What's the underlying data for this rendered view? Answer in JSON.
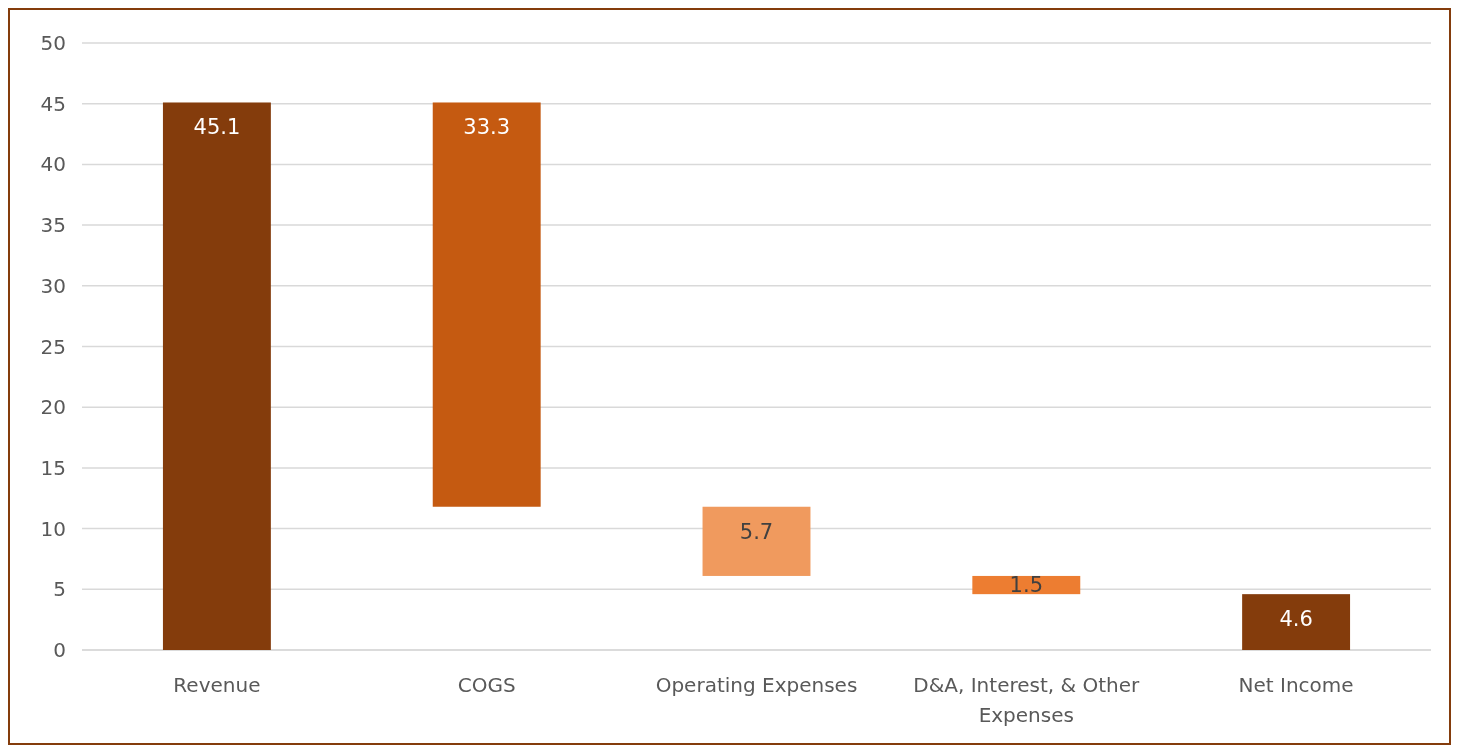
{
  "chart_data": {
    "type": "bar",
    "categories": [
      "Revenue",
      "COGS",
      "Operating Expenses",
      "D&A, Interest, & Other Expenses",
      "Net Income"
    ],
    "values": [
      45.1,
      33.3,
      5.7,
      1.5,
      4.6
    ],
    "base": [
      0,
      11.8,
      6.1,
      4.6,
      0
    ],
    "colors": [
      "#843c0c",
      "#c55a11",
      "#f09a5e",
      "#ed7d31",
      "#843c0c"
    ],
    "ylim": [
      0,
      50
    ],
    "yticks": [
      0,
      5,
      10,
      15,
      20,
      25,
      30,
      35,
      40,
      45,
      50
    ],
    "grid": "y",
    "data_labels": true
  }
}
